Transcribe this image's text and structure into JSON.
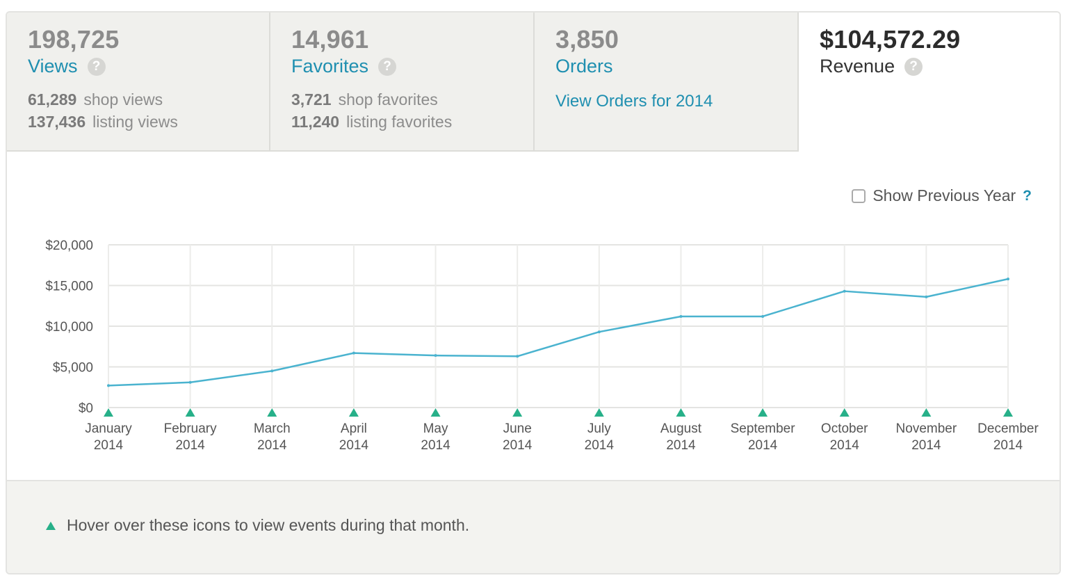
{
  "tabs": {
    "views": {
      "number": "198,725",
      "label": "Views",
      "help": "?",
      "line1_value": "61,289",
      "line1_text": "shop views",
      "line2_value": "137,436",
      "line2_text": "listing views"
    },
    "favorites": {
      "number": "14,961",
      "label": "Favorites",
      "help": "?",
      "line1_value": "3,721",
      "line1_text": "shop favorites",
      "line2_value": "11,240",
      "line2_text": "listing favorites"
    },
    "orders": {
      "number": "3,850",
      "label": "Orders",
      "link": "View Orders for 2014"
    },
    "revenue": {
      "number": "$104,572.29",
      "label": "Revenue",
      "help": "?"
    }
  },
  "controls": {
    "show_previous_year": "Show Previous Year",
    "help": "?"
  },
  "footer": {
    "hint": "Hover over these icons to view events during that month."
  },
  "colors": {
    "line": "#4ab3cf",
    "event_marker": "#27b089",
    "link": "#1f8fb0"
  },
  "chart_data": {
    "type": "line",
    "categories": [
      [
        "January",
        "2014"
      ],
      [
        "February",
        "2014"
      ],
      [
        "March",
        "2014"
      ],
      [
        "April",
        "2014"
      ],
      [
        "May",
        "2014"
      ],
      [
        "June",
        "2014"
      ],
      [
        "July",
        "2014"
      ],
      [
        "August",
        "2014"
      ],
      [
        "September",
        "2014"
      ],
      [
        "October",
        "2014"
      ],
      [
        "November",
        "2014"
      ],
      [
        "December",
        "2014"
      ]
    ],
    "series": [
      {
        "values": [
          2700,
          3100,
          4500,
          6700,
          6400,
          6300,
          9300,
          11200,
          11200,
          14300,
          13600,
          15800
        ]
      }
    ],
    "ylim": [
      0,
      20000
    ],
    "yticks": [
      "$0",
      "$5,000",
      "$10,000",
      "$15,000",
      "$20,000"
    ],
    "grid": true,
    "event_markers": "each month"
  }
}
